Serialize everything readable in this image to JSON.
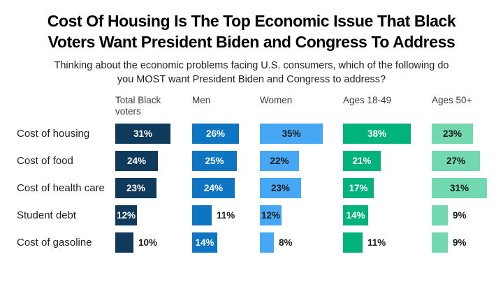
{
  "header": {
    "title_lines": [
      "Cost Of Housing Is The Top Economic Issue That Black",
      "Voters Want President Biden and Congress To Address"
    ],
    "subtitle_lines": [
      "Thinking about the economic problems facing U.S. consumers, which of the following do",
      "you MOST want President Biden and Congress to address?"
    ]
  },
  "chart_data": {
    "type": "bar",
    "orientation": "horizontal",
    "title": "Cost Of Housing Is The Top Economic Issue That Black Voters Want President Biden and Congress To Address",
    "subtitle": "Thinking about the economic problems facing U.S. consumers, which of the following do you MOST want President Biden and Congress to address?",
    "categories": [
      "Cost of housing",
      "Cost of food",
      "Cost of health care",
      "Student debt",
      "Cost of gasoline"
    ],
    "series": [
      {
        "name": "Total Black voters",
        "color": "#103A5C",
        "label_color": "#ffffff",
        "values": [
          31,
          24,
          23,
          12,
          10
        ]
      },
      {
        "name": "Men",
        "color": "#0D75C2",
        "label_color": "#ffffff",
        "values": [
          26,
          25,
          24,
          11,
          14
        ]
      },
      {
        "name": "Women",
        "color": "#46A7F5",
        "label_color": "#1a1a1a",
        "values": [
          35,
          22,
          23,
          12,
          8
        ]
      },
      {
        "name": "Ages 18-49",
        "color": "#00B27C",
        "label_color": "#ffffff",
        "values": [
          38,
          21,
          17,
          14,
          11
        ]
      },
      {
        "name": "Ages 50+",
        "color": "#72D8B0",
        "label_color": "#1a1a1a",
        "values": [
          23,
          27,
          31,
          9,
          9
        ]
      }
    ],
    "value_suffix": "%",
    "outside_label_color": "#1a1a1a",
    "xlim": [
      0,
      40
    ],
    "grid": false,
    "legend_position": "column-headers"
  }
}
